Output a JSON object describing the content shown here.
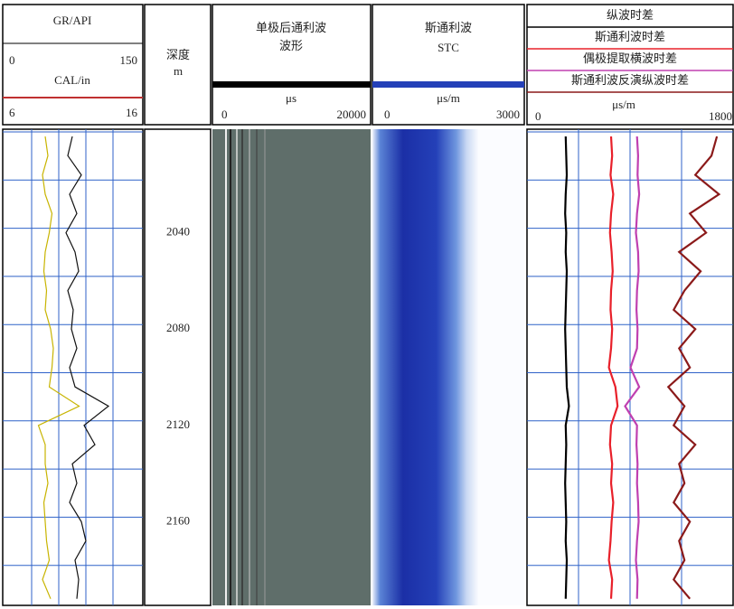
{
  "track1": {
    "gr": {
      "name": "GR/API",
      "scale": [
        0,
        150
      ],
      "color": "#111111",
      "values": [
        75,
        70,
        85,
        72,
        80,
        68,
        78,
        82,
        70,
        76,
        74,
        80,
        72,
        78,
        115,
        88,
        100,
        75,
        80,
        72,
        85,
        90,
        78,
        82,
        80
      ]
    },
    "cal": {
      "name": "CAL/in",
      "scale": [
        6,
        16
      ],
      "color": "#c8b400",
      "values": [
        9,
        9.2,
        8.8,
        9,
        9.5,
        9.3,
        9,
        8.9,
        9.1,
        9,
        9.4,
        9.6,
        9.5,
        9.3,
        11.5,
        8.5,
        9,
        9,
        9.2,
        8.9,
        9,
        9.1,
        9.3,
        8.8,
        9.4
      ]
    }
  },
  "depth": {
    "title": "深度",
    "unit": "m",
    "range": [
      1997,
      2194
    ],
    "ticks": [
      2040,
      2080,
      2120,
      2160
    ],
    "samples": [
      2000,
      2008,
      2016,
      2024,
      2032,
      2040,
      2048,
      2056,
      2064,
      2072,
      2080,
      2088,
      2096,
      2104,
      2112,
      2120,
      2128,
      2136,
      2144,
      2152,
      2160,
      2168,
      2176,
      2184,
      2192
    ]
  },
  "waveform": {
    "title": [
      "单极后通利波",
      "波形"
    ],
    "unit": "μs",
    "scale": [
      0,
      20000
    ]
  },
  "stc": {
    "title": [
      "斯通利波",
      "STC"
    ],
    "unit": "μs/m",
    "scale": [
      0,
      3000
    ]
  },
  "track4": {
    "unit": "μs/m",
    "scale": [
      0,
      1800
    ],
    "curves": [
      {
        "name": "纵波时差",
        "color": "#000000",
        "values": [
          300,
          305,
          310,
          300,
          295,
          305,
          300,
          310,
          305,
          300,
          295,
          300,
          305,
          310,
          330,
          300,
          305,
          300,
          295,
          300,
          305,
          300,
          310,
          305,
          300
        ]
      },
      {
        "name": "斯通利波时差",
        "color": "#e8202a",
        "values": [
          720,
          730,
          715,
          740,
          720,
          710,
          725,
          735,
          720,
          715,
          730,
          720,
          700,
          760,
          780,
          720,
          710,
          730,
          720,
          740,
          725,
          715,
          700,
          730,
          720
        ]
      },
      {
        "name": "偶极提取横波时差",
        "color": "#c040b0",
        "values": [
          960,
          970,
          965,
          980,
          960,
          950,
          970,
          975,
          960,
          955,
          965,
          960,
          900,
          980,
          850,
          960,
          955,
          965,
          960,
          970,
          975,
          960,
          950,
          965,
          960
        ]
      },
      {
        "name": "斯通利波反演纵波时差",
        "color": "#8b1a1a",
        "values": [
          1700,
          1650,
          1500,
          1720,
          1450,
          1600,
          1350,
          1550,
          1400,
          1300,
          1500,
          1350,
          1450,
          1250,
          1400,
          1300,
          1500,
          1350,
          1400,
          1300,
          1450,
          1350,
          1400,
          1300,
          1450
        ]
      }
    ]
  }
}
